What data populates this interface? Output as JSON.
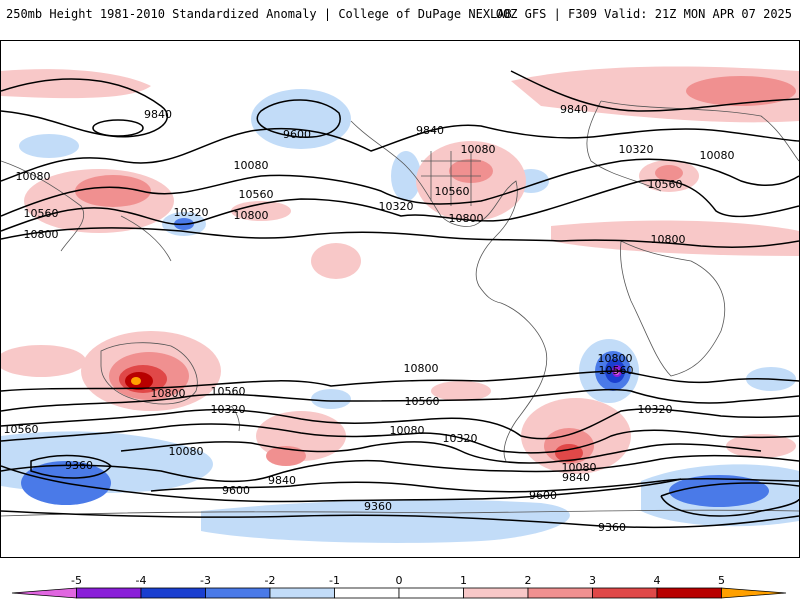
{
  "header": {
    "title": "250mb Height 1981-2010 Standardized Anomaly | College of DuPage NEXLAB",
    "run_info": "00Z GFS | F309 Valid: 21Z MON APR 07 2025"
  },
  "map": {
    "contour_labels": [
      "9840",
      "9600",
      "9840",
      "10080",
      "10080",
      "10560",
      "10560",
      "10800",
      "10320",
      "10800",
      "10080",
      "9840",
      "10320",
      "10560",
      "10800",
      "10800",
      "10320",
      "10080",
      "10560",
      "10800",
      "10800",
      "10560",
      "10320",
      "10560",
      "10560",
      "10080",
      "10800",
      "10320",
      "10560",
      "10080",
      "10320",
      "10080",
      "9840",
      "9840",
      "9360",
      "9600",
      "9360",
      "9600",
      "9360"
    ],
    "colors": {
      "contour": "#000000",
      "coast": "#555555",
      "neg5": "#e066e0",
      "neg4": "#8a1ed8",
      "neg3": "#1a3fd0",
      "neg2": "#4a7ae8",
      "neg1": "#c2dcf8",
      "pos1": "#f8c8c8",
      "pos2": "#f09090",
      "pos3": "#e04848",
      "pos4": "#b80000",
      "pos5": "#ffa000"
    }
  },
  "colorbar": {
    "labels": [
      "-5",
      "-4",
      "-3",
      "-2",
      "-1",
      "0",
      "1",
      "2",
      "3",
      "4",
      "5"
    ],
    "colors": [
      "#e066e0",
      "#8a1ed8",
      "#1a3fd0",
      "#4a7ae8",
      "#c2dcf8",
      "#ffffff",
      "#ffffff",
      "#f8c8c8",
      "#f09090",
      "#e04848",
      "#b80000",
      "#ffa000"
    ]
  }
}
